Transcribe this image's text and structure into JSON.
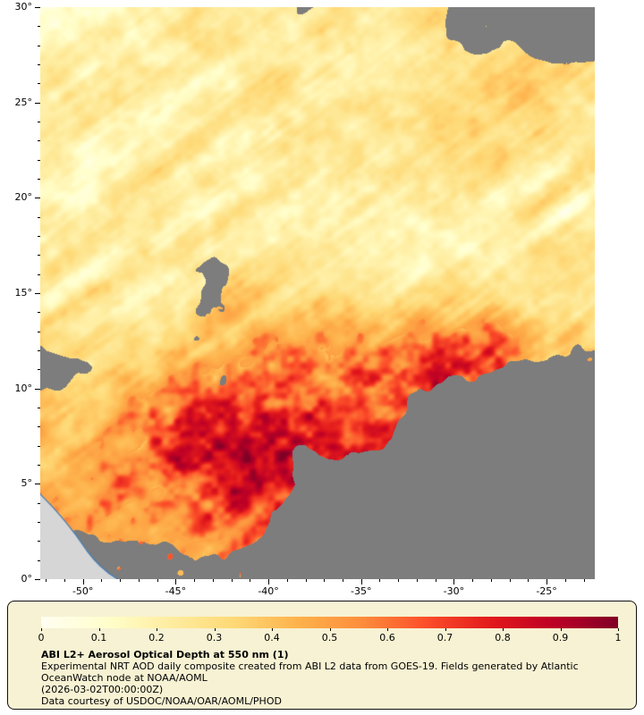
{
  "figure": {
    "map": {
      "lon_range": [
        -52.3,
        -22.4
      ],
      "lat_range": [
        0,
        30
      ],
      "lon_tick_values": [
        -50,
        -45,
        -40,
        -35,
        -30,
        -25
      ],
      "lon_tick_labels": [
        "-50°",
        "-45°",
        "-40°",
        "-35°",
        "-30°",
        "-25°"
      ],
      "lat_tick_values": [
        0,
        5,
        10,
        15,
        20,
        25,
        30
      ],
      "lat_tick_labels": [
        "0°",
        "5°",
        "10°",
        "15°",
        "20°",
        "25°",
        "30°"
      ],
      "nodata_color": "#7d7d7d",
      "land_color": "#d6d6d6",
      "coast_color": "#4a7fb5"
    },
    "colorbar": {
      "tick_labels": [
        "0",
        "0.1",
        "0.2",
        "0.3",
        "0.4",
        "0.5",
        "0.6",
        "0.7",
        "0.8",
        "0.9",
        "1"
      ],
      "stops": [
        "#fffef2",
        "#ffffcc",
        "#ffeda0",
        "#fed976",
        "#feb24c",
        "#fd8d3c",
        "#fc4e2a",
        "#e31a1c",
        "#bd0026",
        "#800026"
      ]
    },
    "legend": {
      "background": "#f7f2d3",
      "border_color": "#111111",
      "title": "ABI L2+ Aerosol Optical Depth at 550 nm (1)",
      "description": "Experimental NRT AOD daily composite created from ABI L2 data from GOES-19. Fields generated by Atlantic OceanWatch node at NOAA/AOML",
      "timestamp": "(2026-03-02T00:00:00Z)",
      "credit": "Data courtesy of USDOC/NOAA/OAR/AOML/PHOD"
    }
  },
  "chart_data": {
    "type": "heatmap",
    "title": "ABI L2+ Aerosol Optical Depth at 550 nm (1)",
    "x_axis": {
      "range": [
        -52.3,
        -22.4
      ],
      "ticks": [
        -50,
        -45,
        -40,
        -35,
        -30,
        -25
      ],
      "tick_labels": [
        "-50°",
        "-45°",
        "-40°",
        "-35°",
        "-30°",
        "-25°"
      ]
    },
    "y_axis": {
      "range": [
        0,
        30
      ],
      "ticks": [
        0,
        5,
        10,
        15,
        20,
        25,
        30
      ],
      "tick_labels": [
        "0°",
        "5°",
        "10°",
        "15°",
        "20°",
        "25°",
        "30°"
      ]
    },
    "colorbar": {
      "range": [
        0,
        1
      ],
      "ticks": [
        0,
        0.1,
        0.2,
        0.3,
        0.4,
        0.5,
        0.6,
        0.7,
        0.8,
        0.9,
        1
      ],
      "palette": "yellow-orange-red (YlOrRd-like)"
    },
    "regions": [
      {
        "area": "north band 15°-30°",
        "aod": "0.1-0.35, pale yellow-orange with wispy SW-NE streaks"
      },
      {
        "area": "dust plume band 4°-13°, -48° to -35°",
        "aod": "0.5-1.0, core above 0.9 near 7°N -40°"
      },
      {
        "area": "streaky patches 9°-13°, -33° to -23°",
        "aod": "0.6-1.0, dark red/maroon specks over gray"
      },
      {
        "area": "south-central, southeast, bottom strip, top-right corner",
        "aod": "no data (gray, cloud-masked)"
      },
      {
        "area": "bottom-left corner",
        "aod": "land (South America coast, light gray with blue coastline)"
      }
    ]
  }
}
